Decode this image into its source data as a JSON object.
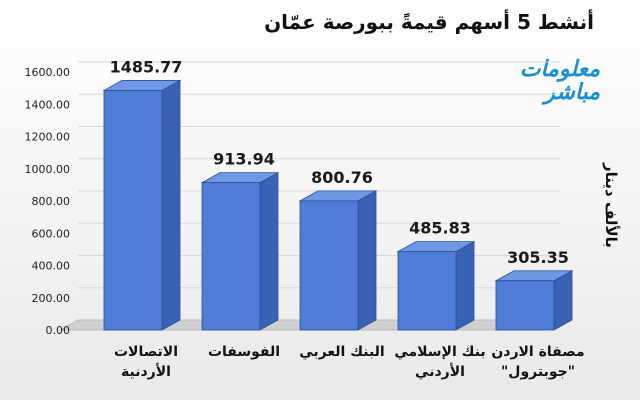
{
  "title": "أنشط 5 أسهم قيمةً ببورصة عمّان",
  "brand": {
    "line1": "معلومات",
    "line2": "مباشر"
  },
  "unit_label": "بالألف دينار",
  "colors": {
    "bar_front": "#4f7cd6",
    "bar_side": "#3a62b4",
    "bar_top": "#6e98e6",
    "bar_edge": "#2b4f99",
    "floor": "#cfcfcf",
    "grid": "#d9d9d9"
  },
  "chart_data": {
    "type": "bar",
    "title": "أنشط 5 أسهم قيمةً ببورصة عمّان",
    "ylabel": "بالألف دينار",
    "ylim": [
      0,
      1600
    ],
    "yticks": [
      "0.00",
      "200.00",
      "400.00",
      "600.00",
      "800.00",
      "1000.00",
      "1200.00",
      "1400.00",
      "1600.00"
    ],
    "categories": [
      [
        "الاتصالات",
        "الأردنية"
      ],
      [
        "الفوسفات"
      ],
      [
        "البنك العربي"
      ],
      [
        "بنك الإسلامي",
        "الأردني"
      ],
      [
        "مصفاة الاردن",
        "\"جوبترول\""
      ]
    ],
    "values": [
      1485.77,
      913.94,
      800.76,
      485.83,
      305.35
    ],
    "value_labels": [
      "1485.77",
      "913.94",
      "800.76",
      "485.83",
      "305.35"
    ],
    "grid": true
  }
}
